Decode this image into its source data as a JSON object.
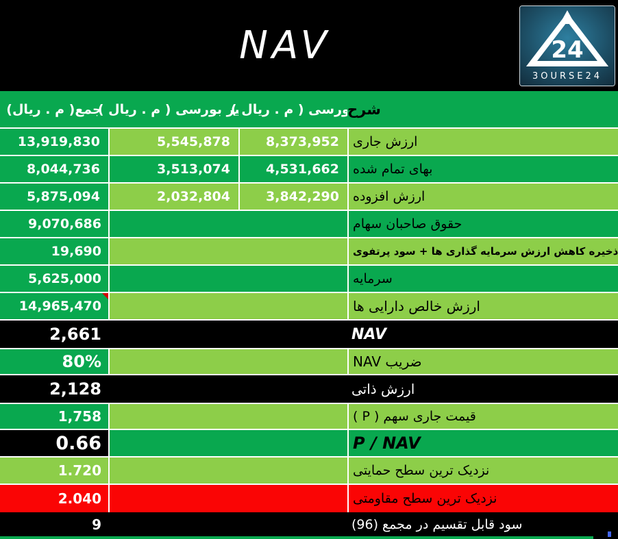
{
  "title": "NAV",
  "logo": {
    "text": "3OURSE24"
  },
  "table": {
    "header": {
      "desc": "شرح",
      "bourse": "بورسی ( م . ریال )",
      "non_bourse": "غیر بورسی ( م . ریال )",
      "total": "جمع( م . ریال)"
    },
    "rows": [
      {
        "label": "ارزش جاری",
        "bourse": "8,373,952",
        "non_bourse": "5,545,878",
        "total": "13,919,830",
        "band": "light",
        "cols": 4
      },
      {
        "label": "بهای تمام شده",
        "bourse": "4,531,662",
        "non_bourse": "3,513,074",
        "total": "8,044,736",
        "band": "dark",
        "cols": 4
      },
      {
        "label": "ارزش افزوده",
        "bourse": "3,842,290",
        "non_bourse": "2,032,804",
        "total": "5,875,094",
        "band": "light",
        "cols": 4
      },
      {
        "label": "حقوق صاحبان سهام",
        "total": "9,070,686",
        "band": "dark"
      },
      {
        "label": "ذخیره کاهش ارزش سرمایه گذاری ها + سود پرتفوی",
        "total": "19,690",
        "band": "light",
        "label_bold": true
      },
      {
        "label": "سرمایه",
        "total": "5,625,000",
        "band": "dark"
      },
      {
        "label": "ارزش خالص دارایی ها",
        "total": "14,965,470",
        "band": "light",
        "comment_marker": true,
        "label_size": "lg"
      },
      {
        "label": "NAV",
        "total": "2,661",
        "band": "black",
        "label_style": "nav",
        "value_size": "lg"
      },
      {
        "label": "ضریب NAV",
        "total": "80%",
        "band": "light",
        "total_bg": "dark",
        "value_size": "lg",
        "label_size": "lg"
      },
      {
        "label": "ارزش ذاتی",
        "total": "2,128",
        "band": "black",
        "value_size": "lg",
        "label_size": "lg"
      },
      {
        "label": "قیمت جاری سهم ( P )",
        "total": "1,758",
        "band": "light",
        "total_bg": "dark",
        "value_size": "md"
      },
      {
        "label": "P / NAV",
        "total": "0.66",
        "band": "dark",
        "total_bg": "black",
        "label_style": "pnav",
        "value_size": "xl"
      },
      {
        "label": "نزدیک ترین سطح حمایتی",
        "total": "1.720",
        "band": "light",
        "total_bg": "light",
        "value_size": "md"
      },
      {
        "label": "نزدیک ترین سطح مقاومتی",
        "total": "2.040",
        "band": "red",
        "total_bg": "red",
        "value_size": "md"
      },
      {
        "label": "سود قابل تقسیم در مجمع (96)",
        "total": "9",
        "band": "black",
        "value_size": "md"
      }
    ]
  },
  "colors": {
    "dark_green": "#09a84f",
    "light_green": "#8dce49",
    "red": "#fa0505",
    "marker_red": "#d40000"
  },
  "chart_data": {
    "type": "table",
    "title": "NAV",
    "columns": [
      "شرح",
      "بورسی (م . ریال)",
      "غیر بورسی (م . ریال)",
      "جمع (م . ریال)"
    ],
    "rows": [
      [
        "ارزش جاری",
        "8,373,952",
        "5,545,878",
        "13,919,830"
      ],
      [
        "بهای تمام شده",
        "4,531,662",
        "3,513,074",
        "8,044,736"
      ],
      [
        "ارزش افزوده",
        "3,842,290",
        "2,032,804",
        "5,875,094"
      ],
      [
        "حقوق صاحبان سهام",
        "",
        "",
        "9,070,686"
      ],
      [
        "ذخیره کاهش ارزش سرمایه گذاری ها + سود پرتفوی",
        "",
        "",
        "19,690"
      ],
      [
        "سرمایه",
        "",
        "",
        "5,625,000"
      ],
      [
        "ارزش خالص دارایی ها",
        "",
        "",
        "14,965,470"
      ],
      [
        "NAV",
        "",
        "",
        "2,661"
      ],
      [
        "ضریب NAV",
        "",
        "",
        "80%"
      ],
      [
        "ارزش ذاتی",
        "",
        "",
        "2,128"
      ],
      [
        "قیمت جاری سهم ( P )",
        "",
        "",
        "1,758"
      ],
      [
        "P / NAV",
        "",
        "",
        "0.66"
      ],
      [
        "نزدیک ترین سطح حمایتی",
        "",
        "",
        "1.720"
      ],
      [
        "نزدیک ترین سطح مقاومتی",
        "",
        "",
        "2.040"
      ],
      [
        "سود قابل تقسیم در مجمع (96)",
        "",
        "",
        "9"
      ]
    ]
  }
}
